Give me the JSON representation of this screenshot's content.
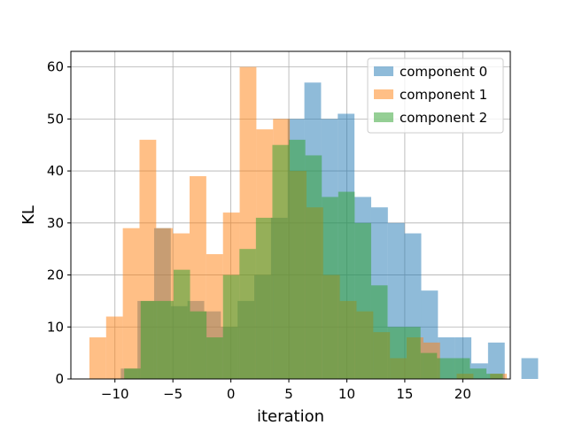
{
  "chart_data": {
    "type": "bar",
    "subtype": "histogram",
    "xlabel": "iteration",
    "ylabel": "KL",
    "xlim": [
      -13.8,
      24.1
    ],
    "ylim": [
      0,
      63
    ],
    "x_ticks": [
      -10,
      -5,
      0,
      5,
      10,
      15,
      20
    ],
    "y_ticks": [
      0,
      10,
      20,
      30,
      40,
      50,
      60
    ],
    "grid": true,
    "legend_position": "top-right",
    "series": [
      {
        "name": "component 0",
        "color": "#1f77b4",
        "opacity": 0.5,
        "bin_start": -9.5,
        "bin_width": 1.44,
        "values": [
          2,
          15,
          29,
          14,
          15,
          13,
          10,
          15,
          20,
          31,
          50,
          57,
          50,
          51,
          35,
          33,
          30,
          28,
          17,
          8,
          8,
          3,
          7,
          0,
          4
        ]
      },
      {
        "name": "component 1",
        "color": "#ff7f0e",
        "opacity": 0.5,
        "bin_start": -12.2,
        "bin_width": 1.44,
        "values": [
          8,
          12,
          29,
          46,
          29,
          28,
          39,
          24,
          32,
          60,
          48,
          50,
          40,
          33,
          20,
          15,
          13,
          9,
          4,
          8,
          7,
          0,
          1,
          0,
          1
        ]
      },
      {
        "name": "component 2",
        "color": "#2ca02c",
        "opacity": 0.5,
        "bin_start": -9.2,
        "bin_width": 1.42,
        "values": [
          2,
          15,
          15,
          21,
          13,
          8,
          20,
          25,
          31,
          45,
          46,
          43,
          35,
          36,
          30,
          18,
          10,
          10,
          5,
          4,
          4,
          2,
          1
        ]
      }
    ]
  }
}
